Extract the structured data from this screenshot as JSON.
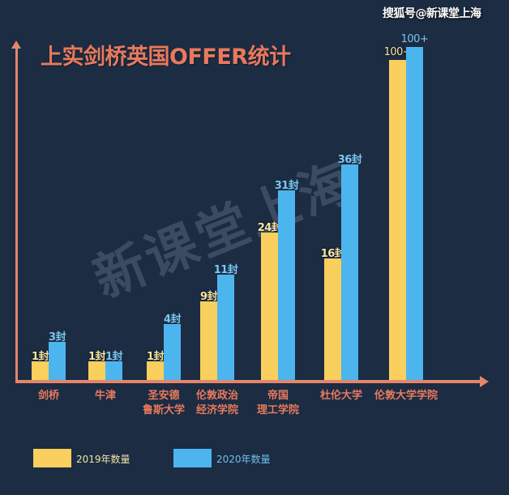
{
  "source_mark": "搜狐号@新课堂上海",
  "watermark": "新课堂上海",
  "colors": {
    "background": "#1b2c43",
    "axis": "#e5866b",
    "title": "#e8795c",
    "series_2019": "#f9cf5d",
    "series_2020": "#4db5ee"
  },
  "legend": {
    "items": [
      {
        "label": "2019年数量",
        "color": "#f9cf5d"
      },
      {
        "label": "2020年数量",
        "color": "#4db5ee"
      }
    ]
  },
  "chart_data": {
    "type": "bar",
    "title": "上实剑桥英国OFFER统计",
    "xlabel": "",
    "ylabel": "",
    "grid": false,
    "legend_position": "bottom-left",
    "categories": [
      "剑桥",
      "牛津",
      "圣安德鲁斯大学",
      "伦敦政治经济学院",
      "帝国理工学院",
      "杜伦大学",
      "伦敦大学学院"
    ],
    "category_lines": [
      [
        "剑桥"
      ],
      [
        "牛津"
      ],
      [
        "圣安德",
        "鲁斯大学"
      ],
      [
        "伦敦政治",
        "经济学院"
      ],
      [
        "帝国",
        "理工学院"
      ],
      [
        "杜伦大学"
      ],
      [
        "伦敦大学学院"
      ]
    ],
    "series": [
      {
        "name": "2019年数量",
        "values": [
          1,
          1,
          1,
          9,
          24,
          16,
          100
        ],
        "labels": [
          "1封",
          "1封",
          "1封",
          "9封",
          "24封",
          "16封",
          "100+"
        ]
      },
      {
        "name": "2020年数量",
        "values": [
          3,
          1,
          4,
          11,
          31,
          36,
          100
        ],
        "labels": [
          "3封",
          "1封",
          "4封",
          "11封",
          "31封",
          "36封",
          "100+"
        ]
      }
    ],
    "notes": "Bar heights are not drawn to a linear scale; 100+ values are open-ended."
  }
}
